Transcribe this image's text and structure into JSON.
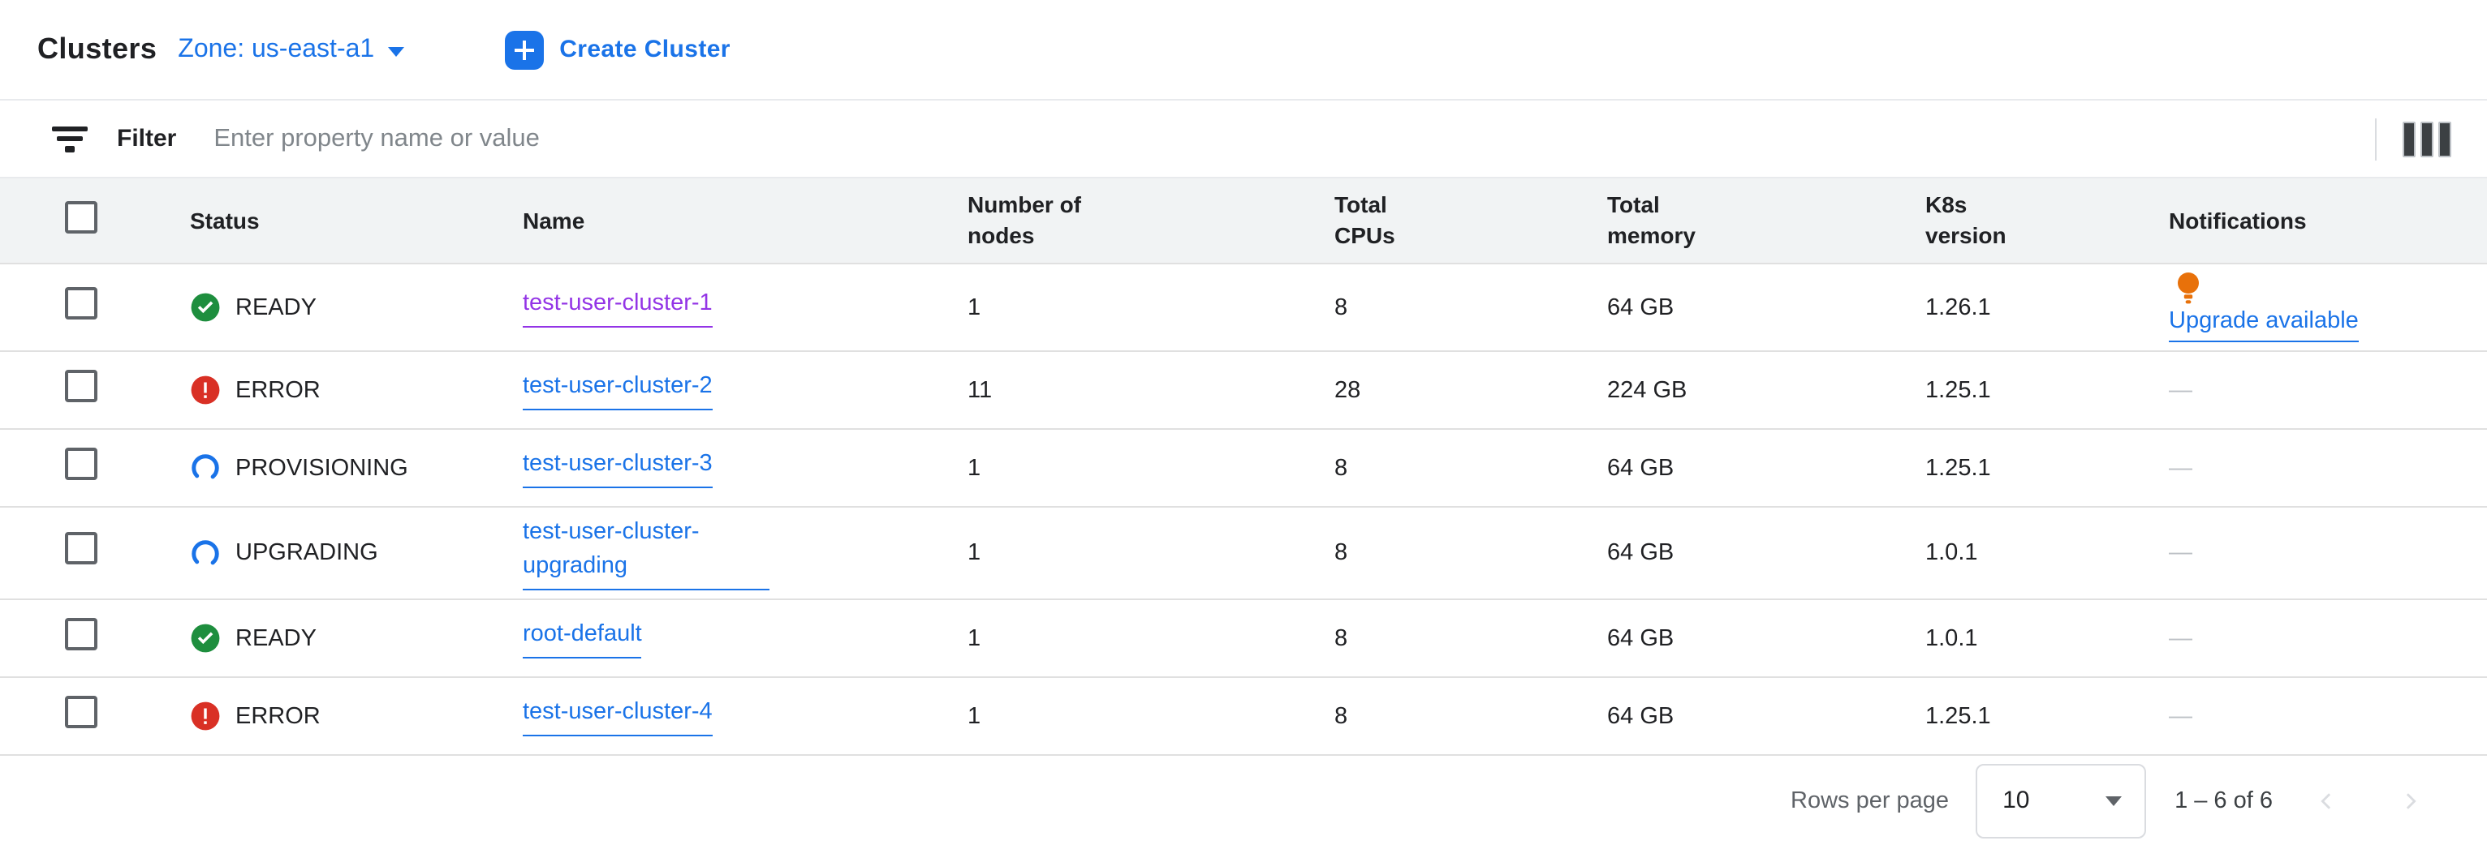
{
  "header": {
    "title": "Clusters",
    "zone_label": "Zone: us-east-a1",
    "create_label": "Create Cluster"
  },
  "filter": {
    "label": "Filter",
    "placeholder": "Enter property name or value"
  },
  "table": {
    "columns": [
      "Status",
      "Name",
      "Number of nodes",
      "Total CPUs",
      "Total memory",
      "K8s version",
      "Notifications"
    ],
    "rows": [
      {
        "status": "READY",
        "status_type": "ready",
        "name": "test-user-cluster-1",
        "name_color": "visited",
        "nodes": "1",
        "cpus": "8",
        "memory": "64 GB",
        "k8s": "1.26.1",
        "notification": "Upgrade available",
        "notification_type": "upgrade"
      },
      {
        "status": "ERROR",
        "status_type": "error",
        "name": "test-user-cluster-2",
        "name_color": "link",
        "nodes": "11",
        "cpus": "28",
        "memory": "224 GB",
        "k8s": "1.25.1",
        "notification": "—",
        "notification_type": "none"
      },
      {
        "status": "PROVISIONING",
        "status_type": "provisioning",
        "name": "test-user-cluster-3",
        "name_color": "link",
        "nodes": "1",
        "cpus": "8",
        "memory": "64 GB",
        "k8s": "1.25.1",
        "notification": "—",
        "notification_type": "none"
      },
      {
        "status": "UPGRADING",
        "status_type": "upgrading",
        "name": "test-user-cluster-upgrading",
        "name_color": "link",
        "nodes": "1",
        "cpus": "8",
        "memory": "64 GB",
        "k8s": "1.0.1",
        "notification": "—",
        "notification_type": "none"
      },
      {
        "status": "READY",
        "status_type": "ready",
        "name": "root-default",
        "name_color": "link",
        "nodes": "1",
        "cpus": "8",
        "memory": "64 GB",
        "k8s": "1.0.1",
        "notification": "—",
        "notification_type": "none"
      },
      {
        "status": "ERROR",
        "status_type": "error",
        "name": "test-user-cluster-4",
        "name_color": "link",
        "nodes": "1",
        "cpus": "8",
        "memory": "64 GB",
        "k8s": "1.25.1",
        "notification": "—",
        "notification_type": "none"
      }
    ]
  },
  "pagination": {
    "rows_per_page_label": "Rows per page",
    "rows_per_page_value": "10",
    "range": "1 – 6 of 6"
  },
  "icons": {
    "filter": "filter-icon",
    "columns": "column-display-options-icon",
    "plus": "plus-icon",
    "ready": "green-check-circle-icon",
    "error": "red-exclamation-circle-icon",
    "provisioning": "blue-spinner-icon",
    "upgrading": "blue-spinner-icon",
    "notification": "lightbulb-icon",
    "zone_caret": "chevron-down-icon",
    "select_caret": "chevron-down-icon",
    "prev": "chevron-left-icon",
    "next": "chevron-right-icon"
  },
  "colors": {
    "accent_blue": "#1a73e8",
    "visited_purple": "#9334e6",
    "ready_green": "#1e8e3e",
    "error_red": "#d93025",
    "bulb_orange": "#e8710a",
    "header_bg": "#f1f3f4",
    "row_border": "#e0e0e0",
    "muted_text": "#5f6368",
    "disabled_gray": "#dadce0"
  }
}
